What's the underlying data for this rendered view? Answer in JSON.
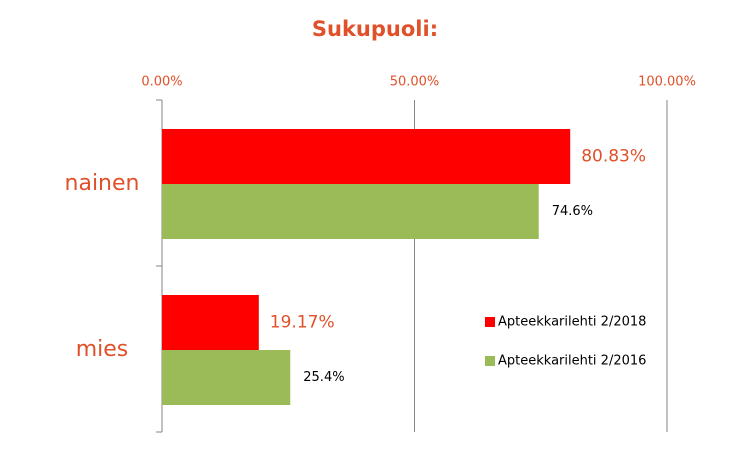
{
  "chart_data": {
    "type": "hbar",
    "title": "Sukupuoli:",
    "categories": [
      "nainen",
      "mies"
    ],
    "series": [
      {
        "name": "Apteekkarilehti 2/2018",
        "color": "#ff0000",
        "values": [
          80.83,
          19.17
        ],
        "value_labels": [
          "80.83%",
          "19.17%"
        ]
      },
      {
        "name": "Apteekkarilehti 2/2016",
        "color": "#9bbb59",
        "values": [
          74.6,
          25.4
        ],
        "value_labels": [
          "74.6%",
          "25.4%"
        ]
      }
    ],
    "xlim": [
      0,
      100
    ],
    "xticks": [
      {
        "value": 0,
        "label": "0.00%"
      },
      {
        "value": 50,
        "label": "50.00%"
      },
      {
        "value": 100,
        "label": "100.00%"
      }
    ],
    "grid": true,
    "legend": "right"
  }
}
